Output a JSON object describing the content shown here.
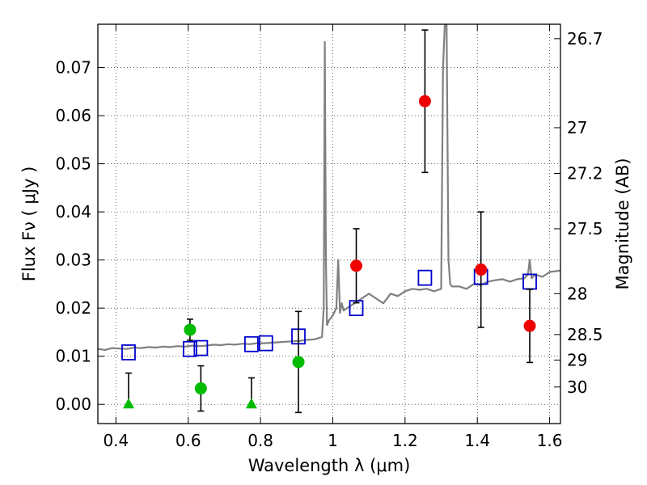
{
  "chart_data": {
    "type": "scatter",
    "xlabel": "Wavelength  λ (μm)",
    "ylabel": "Flux  Fν  ( μJy )",
    "ylabel_right": "Magnitude (AB)",
    "xlim": [
      0.35,
      1.63
    ],
    "ylim": [
      -0.004,
      0.079
    ],
    "grid": true,
    "x_ticks": [
      {
        "value": 0.4,
        "label": "0.4"
      },
      {
        "value": 0.6,
        "label": "0.6"
      },
      {
        "value": 0.8,
        "label": "0.8"
      },
      {
        "value": 1.0,
        "label": "1"
      },
      {
        "value": 1.2,
        "label": "1.2"
      },
      {
        "value": 1.4,
        "label": "1.4"
      },
      {
        "value": 1.6,
        "label": "1.6"
      }
    ],
    "y_ticks": [
      {
        "value": 0.0,
        "label": "0.00"
      },
      {
        "value": 0.01,
        "label": "0.01"
      },
      {
        "value": 0.02,
        "label": "0.02"
      },
      {
        "value": 0.03,
        "label": "0.03"
      },
      {
        "value": 0.04,
        "label": "0.04"
      },
      {
        "value": 0.05,
        "label": "0.05"
      },
      {
        "value": 0.06,
        "label": "0.06"
      },
      {
        "value": 0.07,
        "label": "0.07"
      }
    ],
    "y2_ticks": [
      {
        "label": "26.7",
        "flux": 0.076
      },
      {
        "label": "27",
        "flux": 0.0575
      },
      {
        "label": "27.2",
        "flux": 0.048
      },
      {
        "label": "27.5",
        "flux": 0.0365
      },
      {
        "label": "28",
        "flux": 0.023
      },
      {
        "label": "28.5",
        "flux": 0.0145
      },
      {
        "label": "29",
        "flux": 0.0092
      },
      {
        "label": "30",
        "flux": 0.0036
      }
    ],
    "model_spectrum": {
      "color": "#808080",
      "x": [
        0.35,
        0.37,
        0.39,
        0.41,
        0.43,
        0.45,
        0.47,
        0.49,
        0.51,
        0.53,
        0.55,
        0.57,
        0.59,
        0.61,
        0.63,
        0.65,
        0.67,
        0.69,
        0.71,
        0.73,
        0.75,
        0.77,
        0.79,
        0.81,
        0.83,
        0.85,
        0.87,
        0.89,
        0.91,
        0.93,
        0.95,
        0.97,
        0.975,
        0.978,
        0.981,
        0.984,
        0.99,
        1.0,
        1.01,
        1.015,
        1.02,
        1.025,
        1.03,
        1.04,
        1.05,
        1.06,
        1.07,
        1.08,
        1.1,
        1.12,
        1.14,
        1.15,
        1.16,
        1.18,
        1.2,
        1.22,
        1.24,
        1.26,
        1.28,
        1.3,
        1.305,
        1.31,
        1.315,
        1.32,
        1.325,
        1.33,
        1.35,
        1.37,
        1.39,
        1.41,
        1.43,
        1.45,
        1.47,
        1.49,
        1.51,
        1.53,
        1.54,
        1.545,
        1.55,
        1.56,
        1.58,
        1.6,
        1.63
      ],
      "y": [
        0.0115,
        0.0113,
        0.0117,
        0.0116,
        0.0115,
        0.0118,
        0.0117,
        0.0119,
        0.0118,
        0.012,
        0.0119,
        0.0121,
        0.012,
        0.0122,
        0.0121,
        0.0122,
        0.0124,
        0.0123,
        0.0125,
        0.0124,
        0.0126,
        0.0125,
        0.0127,
        0.0127,
        0.0128,
        0.0129,
        0.013,
        0.0131,
        0.0132,
        0.0134,
        0.0135,
        0.014,
        0.02,
        0.0753,
        0.03,
        0.0165,
        0.0175,
        0.0185,
        0.02,
        0.03,
        0.019,
        0.021,
        0.0195,
        0.02,
        0.0205,
        0.021,
        0.0215,
        0.022,
        0.023,
        0.022,
        0.021,
        0.022,
        0.023,
        0.0225,
        0.0235,
        0.024,
        0.0238,
        0.024,
        0.0235,
        0.024,
        0.07,
        0.079,
        0.079,
        0.03,
        0.025,
        0.0245,
        0.0245,
        0.024,
        0.025,
        0.0248,
        0.0255,
        0.0258,
        0.026,
        0.0255,
        0.026,
        0.0262,
        0.027,
        0.03,
        0.0262,
        0.027,
        0.0265,
        0.0275,
        0.0278
      ]
    },
    "series": [
      {
        "marker": "square-open",
        "color": "#0000cc",
        "points": [
          {
            "x": 0.435,
            "y": 0.0108
          },
          {
            "x": 0.605,
            "y": 0.0115
          },
          {
            "x": 0.635,
            "y": 0.0117
          },
          {
            "x": 0.775,
            "y": 0.0125
          },
          {
            "x": 0.815,
            "y": 0.0127
          },
          {
            "x": 0.905,
            "y": 0.0141
          },
          {
            "x": 1.065,
            "y": 0.02
          },
          {
            "x": 1.255,
            "y": 0.0263
          },
          {
            "x": 1.41,
            "y": 0.0265
          },
          {
            "x": 1.545,
            "y": 0.0255
          }
        ]
      },
      {
        "marker": "circle",
        "color": "#00bb00",
        "points": [
          {
            "x": 0.605,
            "y": 0.0155,
            "err": 0.0022
          },
          {
            "x": 0.635,
            "y": 0.0033,
            "err": 0.0047
          },
          {
            "x": 0.905,
            "y": 0.0088,
            "err": 0.0105
          }
        ]
      },
      {
        "marker": "triangle",
        "color": "#00bb00",
        "points": [
          {
            "x": 0.435,
            "y": 0.0,
            "ytop": 0.0065
          },
          {
            "x": 0.775,
            "y": 0.0,
            "ytop": 0.0055
          }
        ]
      },
      {
        "marker": "circle",
        "color": "#ee0000",
        "points": [
          {
            "x": 1.065,
            "y": 0.0288,
            "err": 0.0077
          },
          {
            "x": 1.255,
            "y": 0.063,
            "err": 0.0148
          },
          {
            "x": 1.41,
            "y": 0.028,
            "err": 0.012
          },
          {
            "x": 1.545,
            "y": 0.0163,
            "err": 0.0076
          }
        ]
      }
    ]
  }
}
